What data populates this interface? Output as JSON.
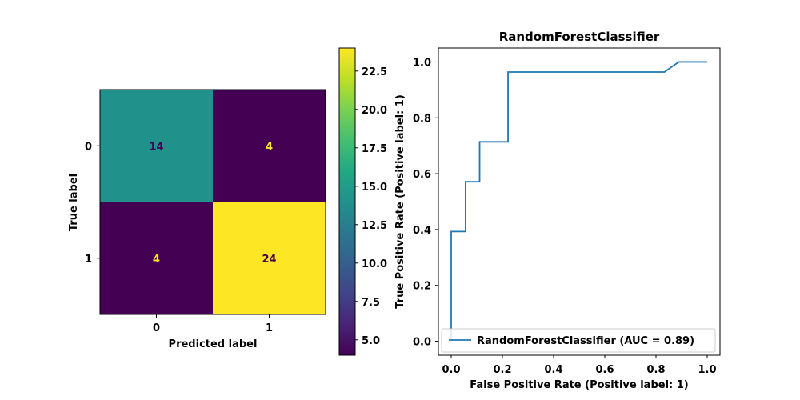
{
  "chart_data": [
    {
      "type": "heatmap",
      "xlabel": "Predicted label",
      "ylabel": "True label",
      "x_categories": [
        "0",
        "1"
      ],
      "y_categories": [
        "0",
        "1"
      ],
      "values": [
        [
          14,
          4
        ],
        [
          4,
          24
        ]
      ],
      "colormap": "viridis",
      "colorbar": {
        "range": [
          4,
          24
        ],
        "ticks": [
          5.0,
          7.5,
          10.0,
          12.5,
          15.0,
          17.5,
          20.0,
          22.5
        ],
        "tick_labels": [
          "5.0",
          "7.5",
          "10.0",
          "12.5",
          "15.0",
          "17.5",
          "20.0",
          "22.5"
        ]
      },
      "cell_colors": [
        [
          "#21918c",
          "#440154"
        ],
        [
          "#440154",
          "#fde725"
        ]
      ],
      "text_colors": [
        [
          "#440154",
          "#fde725"
        ],
        [
          "#fde725",
          "#440154"
        ]
      ],
      "cell_labels": [
        [
          "14",
          "4"
        ],
        [
          "4",
          "24"
        ]
      ]
    },
    {
      "type": "line",
      "title": "RandomForestClassifier",
      "xlabel": "False Positive Rate (Positive label: 1)",
      "ylabel": "True Positive Rate (Positive label: 1)",
      "xlim": [
        -0.05,
        1.05
      ],
      "ylim": [
        -0.05,
        1.05
      ],
      "x_ticks": [
        0.0,
        0.2,
        0.4,
        0.6,
        0.8,
        1.0
      ],
      "x_tick_labels": [
        "0.0",
        "0.2",
        "0.4",
        "0.6",
        "0.8",
        "1.0"
      ],
      "y_ticks": [
        0.0,
        0.2,
        0.4,
        0.6,
        0.8,
        1.0
      ],
      "y_tick_labels": [
        "0.0",
        "0.2",
        "0.4",
        "0.6",
        "0.8",
        "1.0"
      ],
      "grid": false,
      "legend": "lower-right",
      "series": [
        {
          "name": "RandomForestClassifier (AUC = 0.89)",
          "color": "#1f77b4",
          "x": [
            0.0,
            0.0,
            0.0,
            0.056,
            0.056,
            0.111,
            0.111,
            0.222,
            0.222,
            0.833,
            0.889,
            1.0
          ],
          "y": [
            0.0,
            0.036,
            0.393,
            0.393,
            0.571,
            0.571,
            0.714,
            0.714,
            0.964,
            0.964,
            1.0,
            1.0
          ]
        }
      ]
    }
  ]
}
